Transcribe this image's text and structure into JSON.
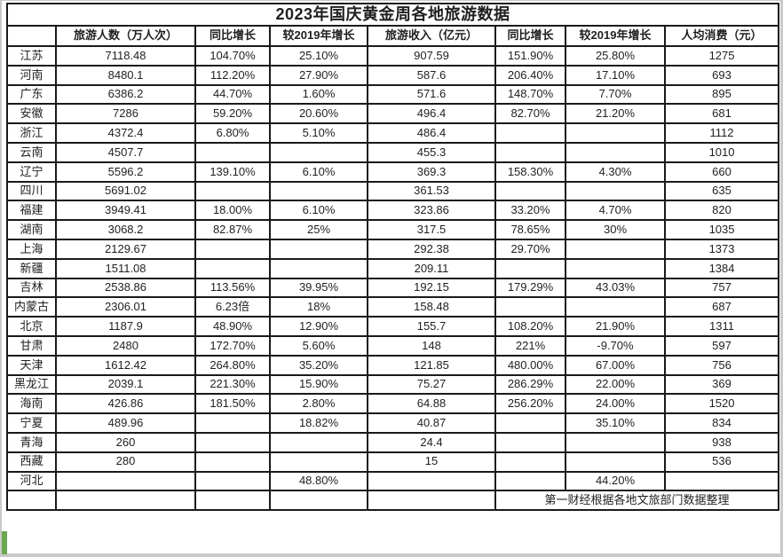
{
  "chart_data": {
    "type": "table",
    "title": "2023年国庆黄金周各地旅游数据",
    "columns": [
      "",
      "旅游人数（万人次）",
      "同比增长",
      "较2019年增长",
      "旅游收入（亿元）",
      "同比增长",
      "较2019年增长",
      "人均消费（元）"
    ],
    "rows": [
      [
        "江苏",
        "7118.48",
        "104.70%",
        "25.10%",
        "907.59",
        "151.90%",
        "25.80%",
        "1275"
      ],
      [
        "河南",
        "8480.1",
        "112.20%",
        "27.90%",
        "587.6",
        "206.40%",
        "17.10%",
        "693"
      ],
      [
        "广东",
        "6386.2",
        "44.70%",
        "1.60%",
        "571.6",
        "148.70%",
        "7.70%",
        "895"
      ],
      [
        "安徽",
        "7286",
        "59.20%",
        "20.60%",
        "496.4",
        "82.70%",
        "21.20%",
        "681"
      ],
      [
        "浙江",
        "4372.4",
        "6.80%",
        "5.10%",
        "486.4",
        "",
        "",
        "1112"
      ],
      [
        "云南",
        "4507.7",
        "",
        "",
        "455.3",
        "",
        "",
        "1010"
      ],
      [
        "辽宁",
        "5596.2",
        "139.10%",
        "6.10%",
        "369.3",
        "158.30%",
        "4.30%",
        "660"
      ],
      [
        "四川",
        "5691.02",
        "",
        "",
        "361.53",
        "",
        "",
        "635"
      ],
      [
        "福建",
        "3949.41",
        "18.00%",
        "6.10%",
        "323.86",
        "33.20%",
        "4.70%",
        "820"
      ],
      [
        "湖南",
        "3068.2",
        "82.87%",
        "25%",
        "317.5",
        "78.65%",
        "30%",
        "1035"
      ],
      [
        "上海",
        "2129.67",
        "",
        "",
        "292.38",
        "29.70%",
        "",
        "1373"
      ],
      [
        "新疆",
        "1511.08",
        "",
        "",
        "209.11",
        "",
        "",
        "1384"
      ],
      [
        "吉林",
        "2538.86",
        "113.56%",
        "39.95%",
        "192.15",
        "179.29%",
        "43.03%",
        "757"
      ],
      [
        "内蒙古",
        "2306.01",
        "6.23倍",
        "18%",
        "158.48",
        "",
        "",
        "687"
      ],
      [
        "北京",
        "1187.9",
        "48.90%",
        "12.90%",
        "155.7",
        "108.20%",
        "21.90%",
        "1311"
      ],
      [
        "甘肃",
        "2480",
        "172.70%",
        "5.60%",
        "148",
        "221%",
        "-9.70%",
        "597"
      ],
      [
        "天津",
        "1612.42",
        "264.80%",
        "35.20%",
        "121.85",
        "480.00%",
        "67.00%",
        "756"
      ],
      [
        "黑龙江",
        "2039.1",
        "221.30%",
        "15.90%",
        "75.27",
        "286.29%",
        "22.00%",
        "369"
      ],
      [
        "海南",
        "426.86",
        "181.50%",
        "2.80%",
        "64.88",
        "256.20%",
        "24.00%",
        "1520"
      ],
      [
        "宁夏",
        "489.96",
        "",
        "18.82%",
        "40.87",
        "",
        "35.10%",
        "834"
      ],
      [
        "青海",
        "260",
        "",
        "",
        "24.4",
        "",
        "",
        "938"
      ],
      [
        "西藏",
        "280",
        "",
        "",
        "15",
        "",
        "",
        "536"
      ],
      [
        "河北",
        "",
        "",
        "48.80%",
        "",
        "",
        "44.20%",
        ""
      ]
    ],
    "source_note": "第一财经根据各地文旅部门数据整理",
    "layout": {
      "legend": "none",
      "grid": "all-borders"
    }
  },
  "colors": {
    "border": "#1a1a1a",
    "text": "#1f1f1f",
    "background": "#ffffff",
    "frame": "#c9c9c9",
    "selection_green": "#6aa84f"
  }
}
